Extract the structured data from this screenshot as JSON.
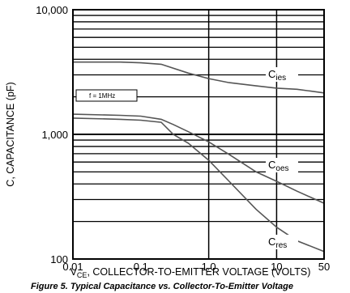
{
  "chart_data": {
    "type": "line",
    "x_scale": "log",
    "y_scale": "log",
    "xlim": [
      0.01,
      50
    ],
    "ylim": [
      100,
      10000
    ],
    "xlabel_main": "V",
    "xlabel_sub": "CE",
    "xlabel_rest": ", COLLECTOR-TO-EMITTER VOLTAGE (VOLTS)",
    "ylabel": "C, CAPACITANCE (pF)",
    "x_ticks": [
      {
        "value": 0.01,
        "label": "0.01"
      },
      {
        "value": 0.1,
        "label": "0.1"
      },
      {
        "value": 1,
        "label": "1.0"
      },
      {
        "value": 10,
        "label": "10"
      },
      {
        "value": 50,
        "label": "50"
      }
    ],
    "y_ticks": [
      {
        "value": 100,
        "label": "100"
      },
      {
        "value": 1000,
        "label": "1,000"
      },
      {
        "value": 10000,
        "label": "10,000"
      }
    ],
    "grid": true,
    "annotation": "f = 1MHz",
    "caption": "Figure 5. Typical Capacitance vs. Collector-To-Emitter Voltage",
    "series": [
      {
        "name_main": "C",
        "name_sub": "ies",
        "x": [
          0.01,
          0.05,
          0.1,
          0.2,
          0.5,
          1,
          2,
          5,
          10,
          20,
          50
        ],
        "y": [
          3800,
          3800,
          3750,
          3650,
          3100,
          2800,
          2600,
          2450,
          2350,
          2300,
          2150
        ]
      },
      {
        "name_main": "C",
        "name_sub": "oes",
        "x": [
          0.01,
          0.05,
          0.1,
          0.2,
          0.3,
          0.5,
          1,
          2,
          5,
          10,
          20,
          50
        ],
        "y": [
          1450,
          1420,
          1400,
          1320,
          1200,
          1050,
          870,
          690,
          500,
          420,
          350,
          280
        ]
      },
      {
        "name_main": "C",
        "name_sub": "res",
        "x": [
          0.01,
          0.05,
          0.1,
          0.2,
          0.3,
          0.5,
          1,
          2,
          5,
          10,
          20,
          50
        ],
        "y": [
          1350,
          1320,
          1300,
          1250,
          1000,
          850,
          620,
          420,
          250,
          180,
          140,
          115
        ]
      }
    ]
  }
}
